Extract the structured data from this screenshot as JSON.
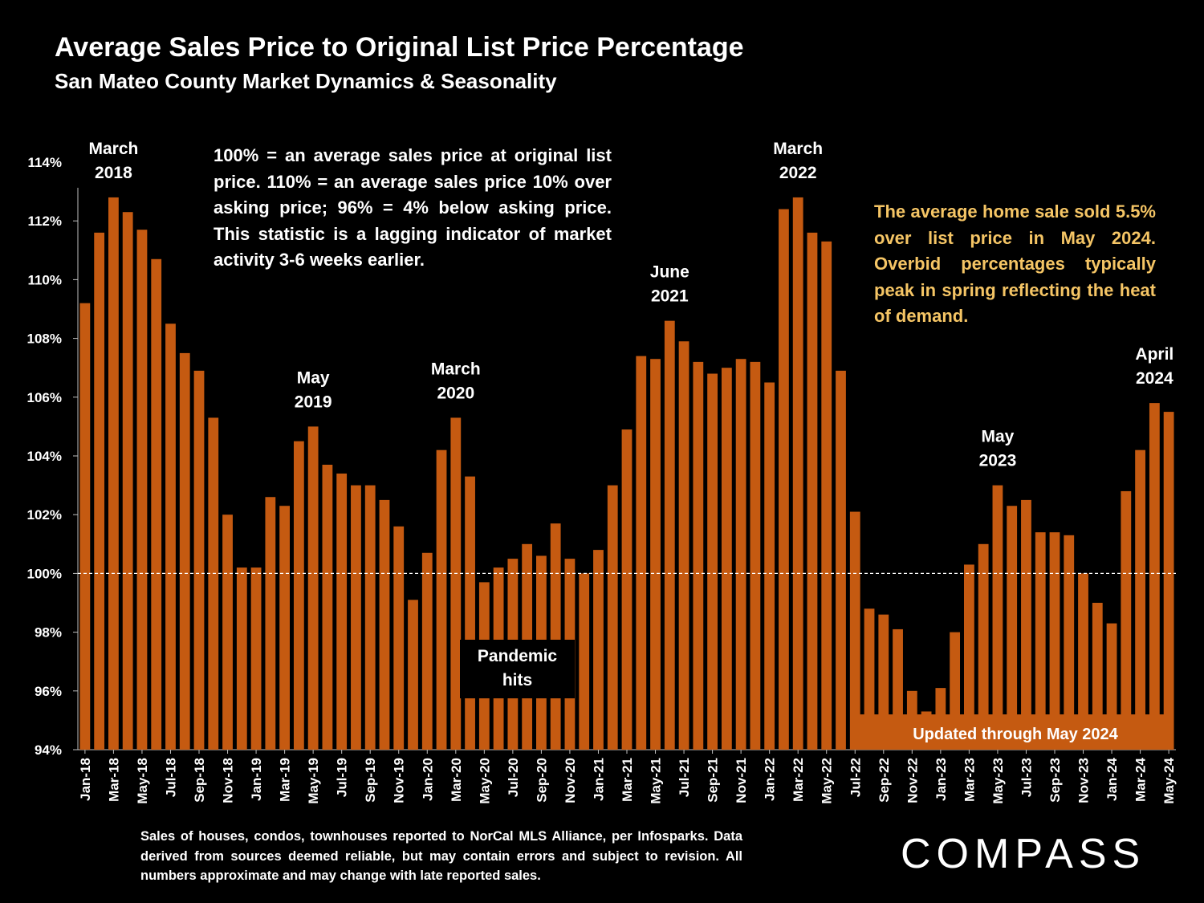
{
  "title": "Average Sales Price to Original List Price Percentage",
  "subtitle": "San Mateo County Market Dynamics & Seasonality",
  "note": "100% = an average sales price at original list price. 110% = an average sales price 10% over asking price; 96% = 4% below asking price. This statistic is a lagging indicator of market activity 3-6 weeks earlier.",
  "callout": "The average home sale sold 5.5% over list price in May 2024. Overbid percentages typically peak in spring reflecting the heat of demand.",
  "footer": "Sales of houses, condos, townhouses reported to NorCal MLS Alliance, per Infosparks. Data derived from sources deemed reliable, but may contain errors and subject to revision. All numbers approximate and may change with late reported sales.",
  "logo": "COMPASS",
  "updated_label": "Updated through May 2024",
  "pandemic_label": [
    "Pandemic",
    "hits"
  ],
  "colors": {
    "bar": "#c55a11",
    "background": "#000000",
    "text": "#ffffff",
    "callout": "#f5c565"
  },
  "chart_data": {
    "type": "bar",
    "ylim": [
      94,
      114
    ],
    "yticks": [
      "94%",
      "96%",
      "98%",
      "100%",
      "102%",
      "104%",
      "106%",
      "108%",
      "110%",
      "112%",
      "114%"
    ],
    "reference_line": 100,
    "grid": false,
    "categories": [
      "Jan-18",
      "Feb-18",
      "Mar-18",
      "Apr-18",
      "May-18",
      "Jun-18",
      "Jul-18",
      "Aug-18",
      "Sep-18",
      "Oct-18",
      "Nov-18",
      "Dec-18",
      "Jan-19",
      "Feb-19",
      "Mar-19",
      "Apr-19",
      "May-19",
      "Jun-19",
      "Jul-19",
      "Aug-19",
      "Sep-19",
      "Oct-19",
      "Nov-19",
      "Dec-19",
      "Jan-20",
      "Feb-20",
      "Mar-20",
      "Apr-20",
      "May-20",
      "Jun-20",
      "Jul-20",
      "Aug-20",
      "Sep-20",
      "Oct-20",
      "Nov-20",
      "Dec-20",
      "Jan-21",
      "Feb-21",
      "Mar-21",
      "Apr-21",
      "May-21",
      "Jun-21",
      "Jul-21",
      "Aug-21",
      "Sep-21",
      "Oct-21",
      "Nov-21",
      "Dec-21",
      "Jan-22",
      "Feb-22",
      "Mar-22",
      "Apr-22",
      "May-22",
      "Jun-22",
      "Jul-22",
      "Aug-22",
      "Sep-22",
      "Oct-22",
      "Nov-22",
      "Dec-22",
      "Jan-23",
      "Feb-23",
      "Mar-23",
      "Apr-23",
      "May-23",
      "Jun-23",
      "Jul-23",
      "Aug-23",
      "Sep-23",
      "Oct-23",
      "Nov-23",
      "Dec-23",
      "Jan-24",
      "Feb-24",
      "Mar-24",
      "Apr-24",
      "May-24"
    ],
    "values": [
      109.2,
      111.6,
      112.8,
      112.3,
      111.7,
      110.7,
      108.5,
      107.5,
      106.9,
      105.3,
      102.0,
      100.2,
      100.2,
      102.6,
      102.3,
      104.5,
      105.0,
      103.7,
      103.4,
      103.0,
      103.0,
      102.5,
      101.6,
      99.1,
      100.7,
      104.2,
      105.3,
      103.3,
      99.7,
      100.2,
      100.5,
      101.0,
      100.6,
      101.7,
      100.5,
      100.0,
      100.8,
      103.0,
      104.9,
      107.4,
      107.3,
      108.6,
      107.9,
      107.2,
      106.8,
      107.0,
      107.3,
      107.2,
      106.5,
      112.4,
      112.8,
      111.6,
      111.3,
      106.9,
      102.1,
      98.8,
      98.6,
      98.1,
      96.0,
      95.3,
      96.1,
      98.0,
      100.3,
      101.0,
      103.0,
      102.3,
      102.5,
      101.4,
      101.4,
      101.3,
      100.0,
      99.0,
      98.3,
      102.8,
      104.2,
      105.8,
      105.5
    ],
    "xtick_labels": [
      "Jan-18",
      "Mar-18",
      "May-18",
      "Jul-18",
      "Sep-18",
      "Nov-18",
      "Jan-19",
      "Mar-19",
      "May-19",
      "Jul-19",
      "Sep-19",
      "Nov-19",
      "Jan-20",
      "Mar-20",
      "May-20",
      "Jul-20",
      "Sep-20",
      "Nov-20",
      "Jan-21",
      "Mar-21",
      "May-21",
      "Jul-21",
      "Sep-21",
      "Nov-21",
      "Jan-22",
      "Mar-22",
      "May-22",
      "Jul-22",
      "Sep-22",
      "Nov-22",
      "Jan-23",
      "Mar-23",
      "May-23",
      "Jul-23",
      "Sep-23",
      "Nov-23",
      "Jan-24",
      "Mar-24",
      "May-24"
    ],
    "annotations": [
      {
        "index": 2,
        "label": [
          "March",
          "2018"
        ]
      },
      {
        "index": 16,
        "label": [
          "May",
          "2019"
        ]
      },
      {
        "index": 26,
        "label": [
          "March",
          "2020"
        ]
      },
      {
        "index": 41,
        "label": [
          "June",
          "2021"
        ]
      },
      {
        "index": 50,
        "label": [
          "March",
          "2022"
        ]
      },
      {
        "index": 64,
        "label": [
          "May",
          "2023"
        ]
      },
      {
        "index": 75,
        "label": [
          "April",
          "2024"
        ]
      }
    ]
  }
}
